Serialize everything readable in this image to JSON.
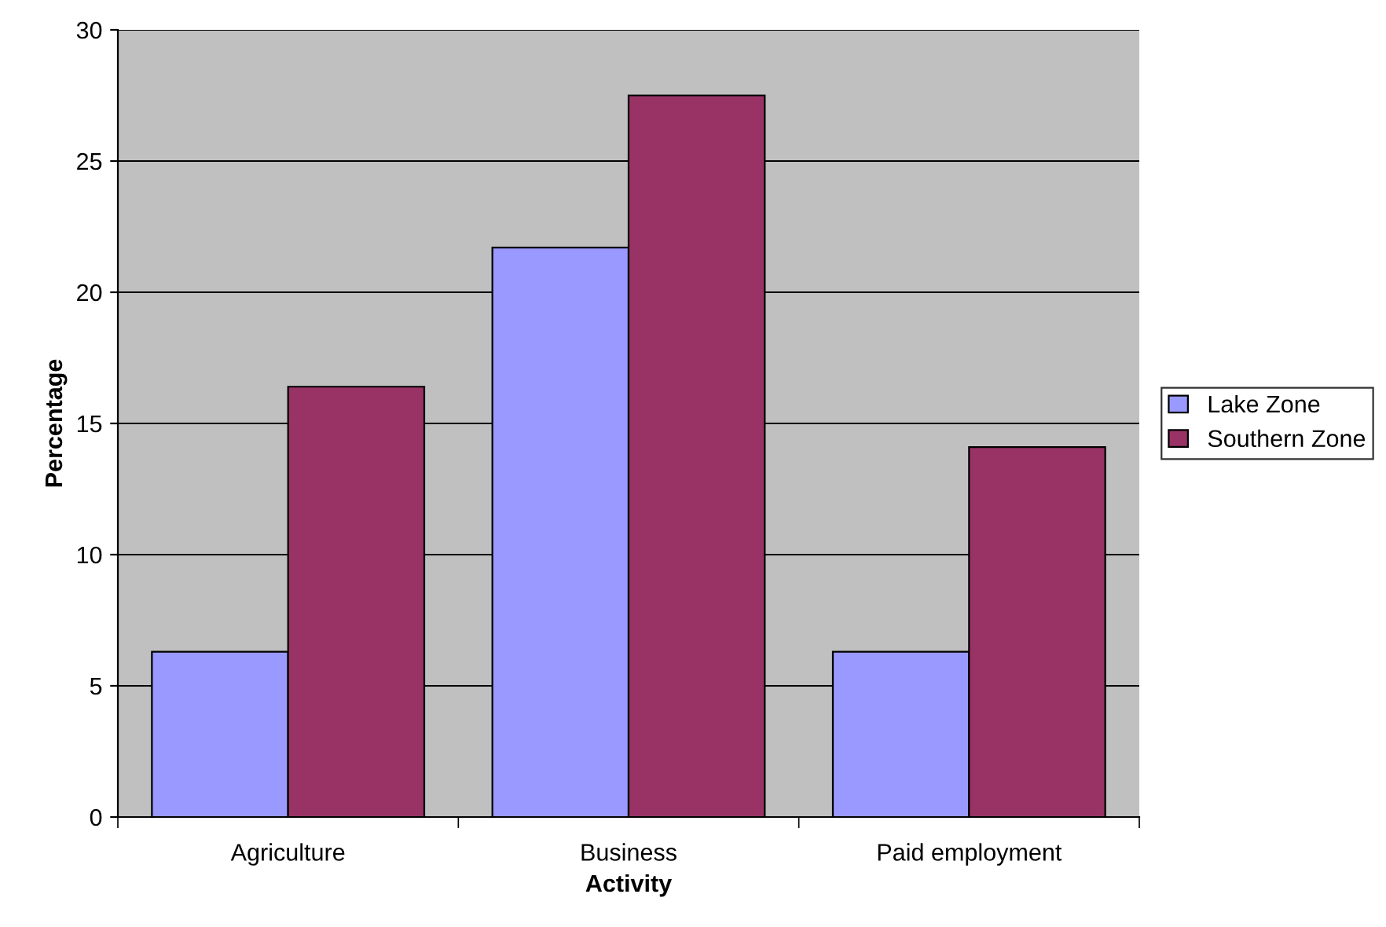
{
  "chart_data": {
    "type": "bar",
    "xlabel": "Activity",
    "ylabel": "Percentage",
    "categories": [
      "Agriculture",
      "Business",
      "Paid employment"
    ],
    "series": [
      {
        "name": "Lake Zone",
        "color": "#9999ff",
        "values": [
          6.3,
          21.7,
          6.3
        ]
      },
      {
        "name": "Southern Zone",
        "color": "#993366",
        "values": [
          16.4,
          27.5,
          14.1
        ]
      }
    ],
    "ylim": [
      0,
      30
    ],
    "yticks": [
      0,
      5,
      10,
      15,
      20,
      25,
      30
    ],
    "grid": "y",
    "legend": "right"
  }
}
